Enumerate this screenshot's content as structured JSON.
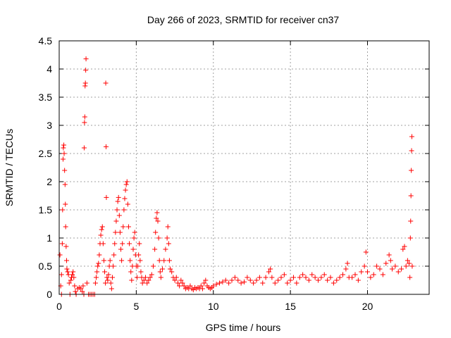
{
  "chart_data": {
    "type": "scatter",
    "title": "Day 266 of 2023, SRMTID for receiver cn37",
    "xlabel": "GPS time / hours",
    "ylabel": "SRMTID / TECUs",
    "xlim": [
      0,
      24
    ],
    "ylim": [
      0,
      4.5
    ],
    "x_ticks": [
      0,
      5,
      10,
      15,
      20
    ],
    "x_tick_labels": [
      "0",
      "5",
      "10",
      "15",
      "20"
    ],
    "y_ticks": [
      0,
      0.5,
      1,
      1.5,
      2,
      2.5,
      3,
      3.5,
      4,
      4.5
    ],
    "y_tick_labels": [
      "0",
      "0.5",
      "1",
      "1.5",
      "2",
      "2.5",
      "3",
      "3.5",
      "4",
      "4.5"
    ],
    "grid": true,
    "marker": "plus",
    "color": "#ff0000",
    "series": [
      {
        "name": "SRMTID",
        "points": [
          [
            0.05,
            0.7
          ],
          [
            0.1,
            0.15
          ],
          [
            0.15,
            0.0
          ],
          [
            0.15,
            0.35
          ],
          [
            0.2,
            0.9
          ],
          [
            0.22,
            1.5
          ],
          [
            0.25,
            2.4
          ],
          [
            0.27,
            2.6
          ],
          [
            0.3,
            2.65
          ],
          [
            0.32,
            2.5
          ],
          [
            0.35,
            2.2
          ],
          [
            0.38,
            1.95
          ],
          [
            0.4,
            1.6
          ],
          [
            0.42,
            1.2
          ],
          [
            0.45,
            0.85
          ],
          [
            0.48,
            0.6
          ],
          [
            0.5,
            0.45
          ],
          [
            0.55,
            0.4
          ],
          [
            0.6,
            0.35
          ],
          [
            0.65,
            0.2
          ],
          [
            0.7,
            0.0
          ],
          [
            0.75,
            0.25
          ],
          [
            0.8,
            0.3
          ],
          [
            0.85,
            0.35
          ],
          [
            0.9,
            0.4
          ],
          [
            0.95,
            0.3
          ],
          [
            1.0,
            0.15
          ],
          [
            1.05,
            0.05
          ],
          [
            1.1,
            0.0
          ],
          [
            1.2,
            0.1
          ],
          [
            1.3,
            0.12
          ],
          [
            1.4,
            0.1
          ],
          [
            1.5,
            0.05
          ],
          [
            1.55,
            0.15
          ],
          [
            1.6,
            0.0
          ],
          [
            1.62,
            2.6
          ],
          [
            1.64,
            3.05
          ],
          [
            1.66,
            3.15
          ],
          [
            1.68,
            3.7
          ],
          [
            1.7,
            3.75
          ],
          [
            1.72,
            3.98
          ],
          [
            1.74,
            4.18
          ],
          [
            1.8,
            0.2
          ],
          [
            1.9,
            0.0
          ],
          [
            2.0,
            0.0
          ],
          [
            2.1,
            0.0
          ],
          [
            2.2,
            0.0
          ],
          [
            2.3,
            0.0
          ],
          [
            2.35,
            0.2
          ],
          [
            2.4,
            0.3
          ],
          [
            2.45,
            0.4
          ],
          [
            2.5,
            0.5
          ],
          [
            2.55,
            0.55
          ],
          [
            2.6,
            0.7
          ],
          [
            2.65,
            0.9
          ],
          [
            2.7,
            1.05
          ],
          [
            2.75,
            1.15
          ],
          [
            2.8,
            1.2
          ],
          [
            2.85,
            0.9
          ],
          [
            2.9,
            0.6
          ],
          [
            2.95,
            0.4
          ],
          [
            3.0,
            0.2
          ],
          [
            3.02,
            3.75
          ],
          [
            3.04,
            2.62
          ],
          [
            3.06,
            1.72
          ],
          [
            3.1,
            0.3
          ],
          [
            3.15,
            0.25
          ],
          [
            3.2,
            0.35
          ],
          [
            3.25,
            0.5
          ],
          [
            3.3,
            0.6
          ],
          [
            3.35,
            0.2
          ],
          [
            3.4,
            0.1
          ],
          [
            3.45,
            0.3
          ],
          [
            3.5,
            0.5
          ],
          [
            3.55,
            0.7
          ],
          [
            3.6,
            0.9
          ],
          [
            3.65,
            1.1
          ],
          [
            3.7,
            1.3
          ],
          [
            3.75,
            1.5
          ],
          [
            3.8,
            1.65
          ],
          [
            3.85,
            1.72
          ],
          [
            3.9,
            1.4
          ],
          [
            3.95,
            1.1
          ],
          [
            4.0,
            0.8
          ],
          [
            4.05,
            0.6
          ],
          [
            4.1,
            0.9
          ],
          [
            4.15,
            1.2
          ],
          [
            4.2,
            1.5
          ],
          [
            4.25,
            1.7
          ],
          [
            4.3,
            1.85
          ],
          [
            4.35,
            1.95
          ],
          [
            4.4,
            2.0
          ],
          [
            4.45,
            1.6
          ],
          [
            4.5,
            1.2
          ],
          [
            4.55,
            0.9
          ],
          [
            4.6,
            0.6
          ],
          [
            4.65,
            0.4
          ],
          [
            4.7,
            0.25
          ],
          [
            4.75,
            0.5
          ],
          [
            4.8,
            0.8
          ],
          [
            4.85,
            1.0
          ],
          [
            4.9,
            1.1
          ],
          [
            4.95,
            0.7
          ],
          [
            5.0,
            0.5
          ],
          [
            5.05,
            0.3
          ],
          [
            5.1,
            0.5
          ],
          [
            5.15,
            0.7
          ],
          [
            5.2,
            0.9
          ],
          [
            5.25,
            0.6
          ],
          [
            5.3,
            0.4
          ],
          [
            5.35,
            0.3
          ],
          [
            5.4,
            0.2
          ],
          [
            5.5,
            0.25
          ],
          [
            5.6,
            0.3
          ],
          [
            5.7,
            0.2
          ],
          [
            5.8,
            0.25
          ],
          [
            5.9,
            0.3
          ],
          [
            6.0,
            0.35
          ],
          [
            6.1,
            0.5
          ],
          [
            6.2,
            0.8
          ],
          [
            6.25,
            1.1
          ],
          [
            6.3,
            1.35
          ],
          [
            6.35,
            1.45
          ],
          [
            6.4,
            1.3
          ],
          [
            6.45,
            1.0
          ],
          [
            6.5,
            0.6
          ],
          [
            6.55,
            0.4
          ],
          [
            6.6,
            0.3
          ],
          [
            6.7,
            0.45
          ],
          [
            6.8,
            0.6
          ],
          [
            6.9,
            0.8
          ],
          [
            7.0,
            1.0
          ],
          [
            7.05,
            1.2
          ],
          [
            7.1,
            0.9
          ],
          [
            7.15,
            0.6
          ],
          [
            7.2,
            0.45
          ],
          [
            7.3,
            0.4
          ],
          [
            7.4,
            0.3
          ],
          [
            7.5,
            0.25
          ],
          [
            7.6,
            0.3
          ],
          [
            7.7,
            0.2
          ],
          [
            7.8,
            0.15
          ],
          [
            7.9,
            0.25
          ],
          [
            8.0,
            0.2
          ],
          [
            8.1,
            0.15
          ],
          [
            8.2,
            0.1
          ],
          [
            8.3,
            0.12
          ],
          [
            8.4,
            0.1
          ],
          [
            8.5,
            0.15
          ],
          [
            8.6,
            0.1
          ],
          [
            8.7,
            0.08
          ],
          [
            8.8,
            0.12
          ],
          [
            8.9,
            0.1
          ],
          [
            9.0,
            0.12
          ],
          [
            9.1,
            0.1
          ],
          [
            9.2,
            0.15
          ],
          [
            9.3,
            0.1
          ],
          [
            9.4,
            0.2
          ],
          [
            9.5,
            0.25
          ],
          [
            9.6,
            0.15
          ],
          [
            9.7,
            0.12
          ],
          [
            9.8,
            0.1
          ],
          [
            9.9,
            0.12
          ],
          [
            10.0,
            0.15
          ],
          [
            10.2,
            0.18
          ],
          [
            10.4,
            0.2
          ],
          [
            10.6,
            0.22
          ],
          [
            10.8,
            0.25
          ],
          [
            11.0,
            0.2
          ],
          [
            11.2,
            0.25
          ],
          [
            11.4,
            0.3
          ],
          [
            11.6,
            0.25
          ],
          [
            11.8,
            0.2
          ],
          [
            12.0,
            0.22
          ],
          [
            12.2,
            0.3
          ],
          [
            12.4,
            0.25
          ],
          [
            12.6,
            0.2
          ],
          [
            12.8,
            0.25
          ],
          [
            13.0,
            0.3
          ],
          [
            13.2,
            0.2
          ],
          [
            13.4,
            0.3
          ],
          [
            13.6,
            0.4
          ],
          [
            13.7,
            0.45
          ],
          [
            13.8,
            0.3
          ],
          [
            14.0,
            0.2
          ],
          [
            14.2,
            0.25
          ],
          [
            14.4,
            0.3
          ],
          [
            14.6,
            0.35
          ],
          [
            14.8,
            0.2
          ],
          [
            15.0,
            0.25
          ],
          [
            15.2,
            0.3
          ],
          [
            15.4,
            0.2
          ],
          [
            15.6,
            0.3
          ],
          [
            15.8,
            0.35
          ],
          [
            16.0,
            0.3
          ],
          [
            16.2,
            0.25
          ],
          [
            16.4,
            0.35
          ],
          [
            16.6,
            0.3
          ],
          [
            16.8,
            0.25
          ],
          [
            17.0,
            0.3
          ],
          [
            17.2,
            0.35
          ],
          [
            17.4,
            0.25
          ],
          [
            17.6,
            0.3
          ],
          [
            17.8,
            0.2
          ],
          [
            18.0,
            0.25
          ],
          [
            18.2,
            0.3
          ],
          [
            18.4,
            0.35
          ],
          [
            18.6,
            0.45
          ],
          [
            18.7,
            0.55
          ],
          [
            18.8,
            0.3
          ],
          [
            19.0,
            0.3
          ],
          [
            19.2,
            0.35
          ],
          [
            19.4,
            0.25
          ],
          [
            19.6,
            0.4
          ],
          [
            19.8,
            0.5
          ],
          [
            19.9,
            0.75
          ],
          [
            20.0,
            0.4
          ],
          [
            20.2,
            0.3
          ],
          [
            20.4,
            0.35
          ],
          [
            20.6,
            0.5
          ],
          [
            20.8,
            0.45
          ],
          [
            21.0,
            0.35
          ],
          [
            21.2,
            0.55
          ],
          [
            21.4,
            0.7
          ],
          [
            21.5,
            0.6
          ],
          [
            21.6,
            0.45
          ],
          [
            21.8,
            0.5
          ],
          [
            22.0,
            0.4
          ],
          [
            22.2,
            0.45
          ],
          [
            22.3,
            0.8
          ],
          [
            22.4,
            0.85
          ],
          [
            22.5,
            0.5
          ],
          [
            22.6,
            0.6
          ],
          [
            22.7,
            0.55
          ],
          [
            22.75,
            0.3
          ],
          [
            22.78,
            1.0
          ],
          [
            22.8,
            1.3
          ],
          [
            22.82,
            1.75
          ],
          [
            22.84,
            2.2
          ],
          [
            22.86,
            2.55
          ],
          [
            22.88,
            2.8
          ],
          [
            22.9,
            0.5
          ]
        ]
      }
    ]
  }
}
